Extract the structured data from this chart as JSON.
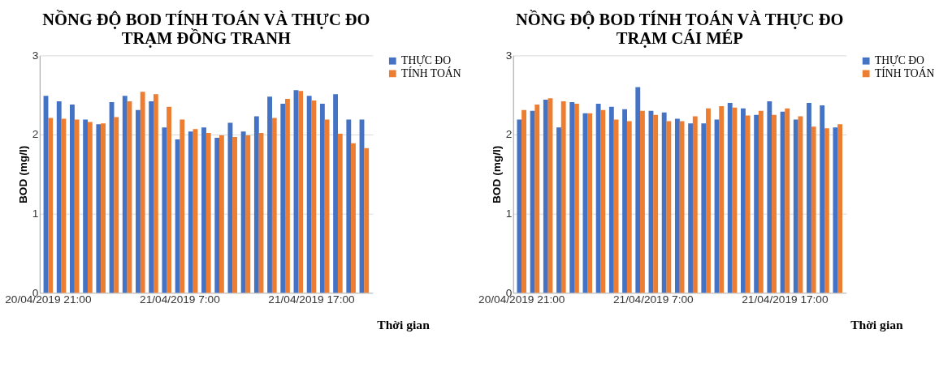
{
  "chart_data": [
    {
      "type": "bar",
      "title": [
        "NỒNG ĐỘ BOD TÍNH TOÁN VÀ THỰC ĐO",
        "TRẠM ĐỒNG TRANH"
      ],
      "xlabel": "Thời gian",
      "ylabel": "BOD (mg/l)",
      "categories": [
        "20/04/2019 21:00",
        null,
        null,
        null,
        null,
        null,
        null,
        null,
        null,
        null,
        "21/04/2019 7:00",
        null,
        null,
        null,
        null,
        null,
        null,
        null,
        null,
        null,
        "21/04/2019 17:00",
        null,
        null,
        null,
        null
      ],
      "series": [
        {
          "name": "THỰC ĐO",
          "color": "#4472c4",
          "values": [
            2.49,
            2.42,
            2.38,
            2.19,
            2.13,
            2.41,
            2.49,
            2.31,
            2.42,
            2.09,
            1.94,
            2.04,
            2.09,
            1.96,
            2.15,
            2.04,
            2.23,
            2.48,
            2.39,
            2.56,
            2.49,
            2.39,
            2.51,
            2.19,
            2.19
          ]
        },
        {
          "name": "TÍNH TOÁN",
          "color": "#ed7d31",
          "values": [
            2.21,
            2.2,
            2.19,
            2.16,
            2.14,
            2.22,
            2.42,
            2.54,
            2.51,
            2.35,
            2.19,
            2.07,
            2.02,
            1.99,
            1.97,
            1.99,
            2.02,
            2.21,
            2.45,
            2.55,
            2.43,
            2.19,
            2.01,
            1.89,
            1.83
          ]
        }
      ],
      "ylim": [
        0,
        3
      ],
      "yticks": [
        0,
        1,
        2,
        3
      ],
      "grid": "y",
      "legend": "right"
    },
    {
      "type": "bar",
      "title": [
        "NỒNG ĐỘ BOD TÍNH TOÁN VÀ THỰC ĐO",
        "TRẠM CÁI MÉP"
      ],
      "xlabel": "Thời gian",
      "ylabel": "BOD (mg/l)",
      "categories": [
        "20/04/2019 21:00",
        null,
        null,
        null,
        null,
        null,
        null,
        null,
        null,
        null,
        "21/04/2019 7:00",
        null,
        null,
        null,
        null,
        null,
        null,
        null,
        null,
        null,
        "21/04/2019 17:00",
        null,
        null,
        null,
        null
      ],
      "series": [
        {
          "name": "THỰC ĐO",
          "color": "#4472c4",
          "values": [
            2.19,
            2.3,
            2.44,
            2.09,
            2.41,
            2.27,
            2.39,
            2.35,
            2.32,
            2.6,
            2.3,
            2.28,
            2.2,
            2.14,
            2.14,
            2.19,
            2.4,
            2.33,
            2.25,
            2.42,
            2.29,
            2.19,
            2.4,
            2.37,
            2.09
          ]
        },
        {
          "name": "TÍNH TOÁN",
          "color": "#ed7d31",
          "values": [
            2.31,
            2.38,
            2.46,
            2.42,
            2.39,
            2.27,
            2.31,
            2.19,
            2.17,
            2.3,
            2.25,
            2.17,
            2.17,
            2.23,
            2.33,
            2.36,
            2.34,
            2.24,
            2.3,
            2.25,
            2.33,
            2.23,
            2.1,
            2.08,
            2.13
          ]
        }
      ],
      "ylim": [
        0,
        3
      ],
      "yticks": [
        0,
        1,
        2,
        3
      ],
      "grid": "y",
      "legend": "right"
    }
  ]
}
